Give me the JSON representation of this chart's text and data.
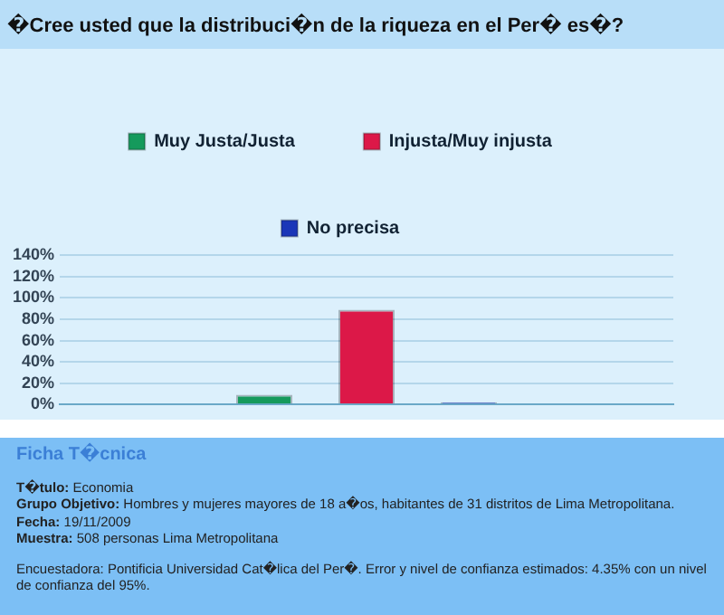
{
  "chart_data": {
    "type": "bar",
    "title": "�Cree usted que la distribuci�n de la riqueza en el Per� es�?",
    "categories": [
      null
    ],
    "series": [
      {
        "name": "Muy Justa/Justa",
        "color": "#159a5c",
        "values": [
          9
        ]
      },
      {
        "name": "Injusta/Muy injusta",
        "color": "#dc1848",
        "values": [
          89
        ]
      },
      {
        "name": "No precisa",
        "color": "#1a36b8",
        "values": [
          2
        ]
      }
    ],
    "ylim": [
      0,
      140
    ],
    "yticks": [
      {
        "value": 0,
        "label": "0%"
      },
      {
        "value": 20,
        "label": "20%"
      },
      {
        "value": 40,
        "label": "40%"
      },
      {
        "value": 60,
        "label": "60%"
      },
      {
        "value": 80,
        "label": "80%"
      },
      {
        "value": 100,
        "label": "100%"
      },
      {
        "value": 120,
        "label": "120%"
      },
      {
        "value": 140,
        "label": "140%"
      }
    ],
    "grid": "y",
    "legend": "top",
    "annotations": [
      "Ficha T�cnica",
      "T�tulo: Economia",
      "Grupo Objetivo: Hombres y mujeres mayores de 18 a�os, habitantes de 31 distritos de Lima Metropolitana.",
      "Fecha: 19/11/2009",
      "Muestra: 508 personas Lima Metropolitana",
      "Encuestadora: Pontificia Universidad Cat�lica del Per�. Error y nivel de confianza estimados: 4.35% con un nivel de confianza del 95%."
    ]
  }
}
